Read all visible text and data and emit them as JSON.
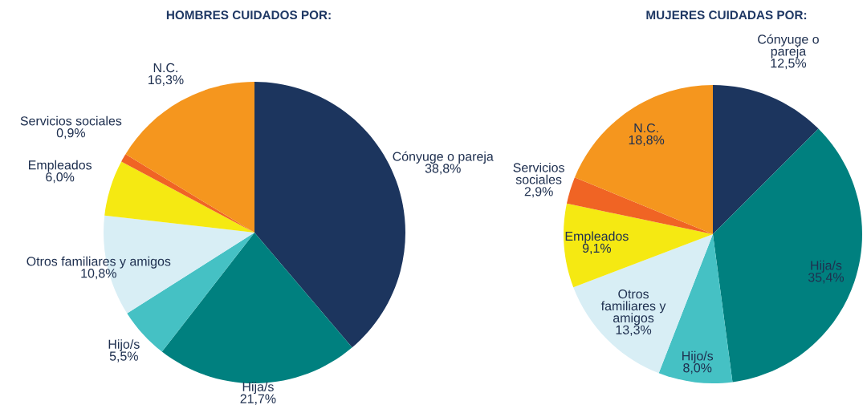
{
  "chart_data": [
    {
      "type": "pie",
      "title": "HOMBRES CUIDADOS POR:",
      "categories": [
        "Cónyuge o pareja",
        "Hija/s",
        "Hijo/s",
        "Otros familiares y amigos",
        "Empleados",
        "Servicios sociales",
        "N.C."
      ],
      "values": [
        38.8,
        21.7,
        5.5,
        10.8,
        6.0,
        0.9,
        16.3
      ],
      "value_labels": [
        "38,8%",
        "21,7%",
        "5,5%",
        "10,8%",
        "6,0%",
        "0,9%",
        "16,3%"
      ],
      "colors": [
        "#1c355e",
        "#00807f",
        "#45c1c4",
        "#d8eef5",
        "#f5e912",
        "#f06424",
        "#f5961e"
      ]
    },
    {
      "type": "pie",
      "title": "MUJERES CUIDADAS POR:",
      "categories": [
        "Cónyuge o\npareja",
        "Hija/s",
        "Hijo/s",
        "Otros\nfamiliares y\namigos",
        "Empleados",
        "Servicios\nsociales",
        "N.C."
      ],
      "values": [
        12.5,
        35.4,
        8.0,
        13.3,
        9.1,
        2.9,
        18.8
      ],
      "value_labels": [
        "12,5%",
        "35,4%",
        "8,0%",
        "13,3%",
        "9,1%",
        "2,9%",
        "18,8%"
      ],
      "colors": [
        "#1c355e",
        "#00807f",
        "#45c1c4",
        "#d8eef5",
        "#f5e912",
        "#f06424",
        "#f5961e"
      ]
    }
  ]
}
